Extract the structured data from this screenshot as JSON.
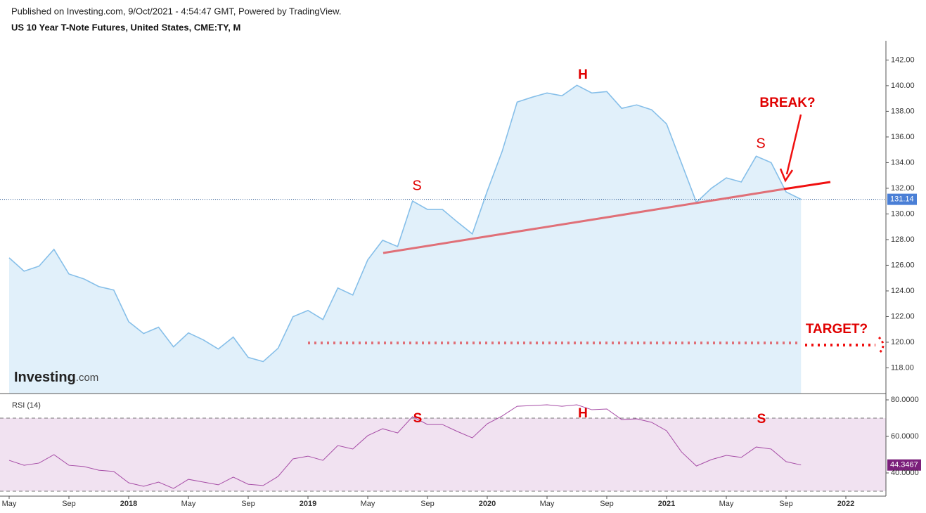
{
  "header": {
    "published": "Published on Investing.com, 9/Oct/2021 - 4:54:47 GMT, Powered by TradingView.",
    "title": "US 10 Year T-Note Futures, United States, CME:TY, M"
  },
  "logo": {
    "brand": "Investing",
    "suffix": ".com"
  },
  "chart_data": [
    {
      "type": "area",
      "color": "#86bfe9",
      "fill": "#e1f0fa",
      "values": [
        126.58,
        125.54,
        125.93,
        127.24,
        125.32,
        124.94,
        124.34,
        124.07,
        121.6,
        120.68,
        121.17,
        119.64,
        120.73,
        120.18,
        119.47,
        120.4,
        118.82,
        118.49,
        119.53,
        121.99,
        122.48,
        121.77,
        124.23,
        123.68,
        126.42,
        127.95,
        127.46,
        131.01,
        130.35,
        130.35,
        129.37,
        128.44,
        131.78,
        134.89,
        138.72,
        139.1,
        139.43,
        139.21,
        140.03,
        139.43,
        139.54,
        138.23,
        138.5,
        138.12,
        137.02,
        133.96,
        130.9,
        132.0,
        132.81,
        132.49,
        134.5,
        134.0,
        131.72,
        131.14,
        null,
        null,
        null
      ],
      "ylim": [
        116,
        143.5
      ],
      "yticks": [
        {
          "value": 118,
          "label": "118.00"
        },
        {
          "value": 120,
          "label": "120.00"
        },
        {
          "value": 122,
          "label": "122.00"
        },
        {
          "value": 124,
          "label": "124.00"
        },
        {
          "value": 126,
          "label": "126.00"
        },
        {
          "value": 128,
          "label": "128.00"
        },
        {
          "value": 130,
          "label": "130.00"
        },
        {
          "value": 132,
          "label": "132.00"
        },
        {
          "value": 134,
          "label": "134.00"
        },
        {
          "value": 136,
          "label": "136.00"
        },
        {
          "value": 138,
          "label": "138.00"
        },
        {
          "value": 140,
          "label": "140.00"
        },
        {
          "value": 142,
          "label": "142.00"
        }
      ],
      "annotations": [
        "S",
        "H",
        "S",
        "BREAK?",
        "TARGET?"
      ]
    },
    {
      "type": "line",
      "title": "RSI (14)",
      "color": "#a64ca6",
      "band_color": "#f1e2f1",
      "categories": [
        "May",
        null,
        null,
        null,
        "Sep",
        null,
        null,
        null,
        "2018",
        null,
        null,
        null,
        "May",
        null,
        null,
        null,
        "Sep",
        null,
        null,
        null,
        "2019",
        null,
        null,
        null,
        "May",
        null,
        null,
        null,
        "Sep",
        null,
        null,
        null,
        "2020",
        null,
        null,
        null,
        "May",
        null,
        null,
        null,
        "Sep",
        null,
        null,
        null,
        "2021",
        null,
        null,
        null,
        "May",
        null,
        null,
        null,
        "Sep",
        null,
        null,
        null,
        "2022"
      ],
      "values": [
        46.9,
        44.2,
        45.4,
        50.0,
        44.2,
        43.5,
        41.5,
        40.8,
        34.6,
        32.7,
        35.0,
        31.5,
        36.5,
        35.0,
        33.5,
        37.7,
        33.8,
        33.1,
        38.1,
        47.7,
        49.2,
        46.9,
        55.0,
        53.1,
        60.4,
        64.2,
        61.9,
        70.8,
        66.5,
        66.5,
        62.7,
        59.2,
        66.9,
        71.2,
        76.5,
        76.9,
        77.3,
        76.5,
        77.3,
        74.6,
        75.0,
        69.2,
        69.6,
        67.7,
        63.1,
        51.5,
        43.8,
        47.3,
        49.6,
        48.5,
        54.2,
        53.1,
        46.2,
        44.3467,
        null,
        null,
        null
      ],
      "bands": [
        30,
        70
      ],
      "ylim": [
        27.3,
        82.7
      ],
      "yticks": [
        {
          "value": 40,
          "label": "40.0000"
        },
        {
          "value": 60,
          "label": "60.0000"
        },
        {
          "value": 80,
          "label": "80.0000"
        }
      ],
      "annotations": [
        "S",
        "H",
        "S"
      ]
    }
  ]
}
